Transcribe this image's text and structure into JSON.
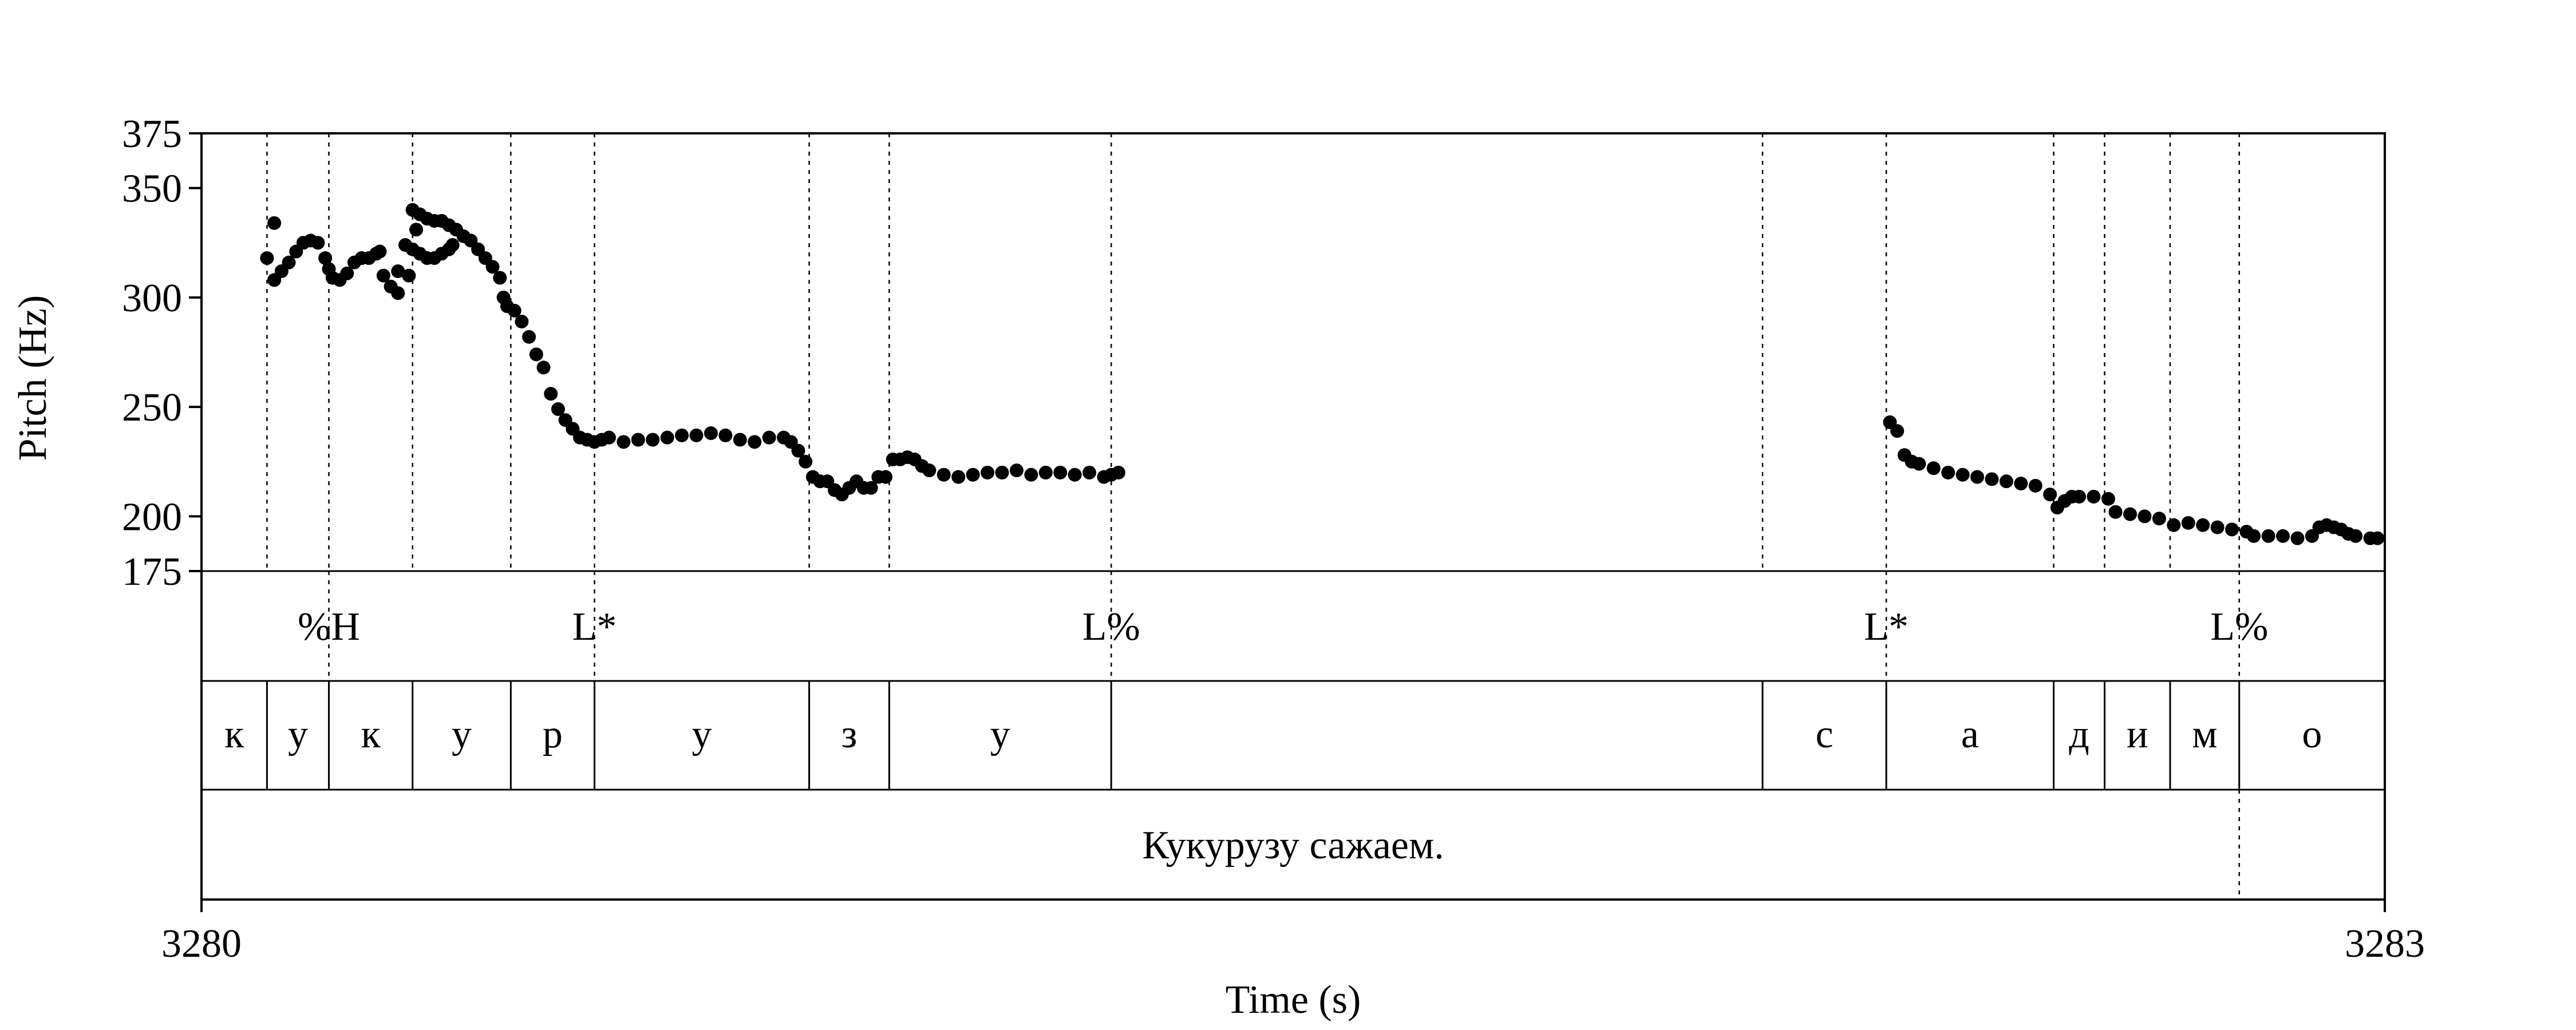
{
  "chart_data": {
    "type": "scatter",
    "xlabel": "Time (s)",
    "ylabel": "Pitch (Hz)",
    "xlim": [
      3280,
      3283
    ],
    "ylim": [
      175,
      375
    ],
    "x_tick_labels": [
      "3280",
      "3283"
    ],
    "y_ticks": [
      175,
      200,
      250,
      300,
      350,
      375
    ],
    "y_tick_labels": [
      "175",
      "200",
      "250",
      "300",
      "350",
      "375"
    ],
    "grid": false,
    "legend": "none",
    "marker_color": "#000000",
    "series": [
      {
        "points": [
          [
            3280.09,
            318
          ],
          [
            3280.1,
            334
          ],
          [
            3280.1,
            308
          ],
          [
            3280.11,
            312
          ],
          [
            3280.12,
            316
          ],
          [
            3280.13,
            321
          ],
          [
            3280.14,
            325
          ],
          [
            3280.15,
            326
          ],
          [
            3280.16,
            325
          ],
          [
            3280.17,
            318
          ],
          [
            3280.175,
            313
          ],
          [
            3280.18,
            309
          ],
          [
            3280.19,
            308
          ],
          [
            3280.2,
            311
          ],
          [
            3280.21,
            316
          ],
          [
            3280.22,
            318
          ],
          [
            3280.23,
            318
          ],
          [
            3280.24,
            320
          ],
          [
            3280.245,
            321
          ],
          [
            3280.25,
            310
          ],
          [
            3280.26,
            305
          ],
          [
            3280.27,
            312
          ],
          [
            3280.27,
            302
          ],
          [
            3280.28,
            324
          ],
          [
            3280.29,
            322
          ],
          [
            3280.3,
            320
          ],
          [
            3280.31,
            318
          ],
          [
            3280.32,
            318
          ],
          [
            3280.33,
            320
          ],
          [
            3280.34,
            322
          ],
          [
            3280.345,
            324
          ],
          [
            3280.285,
            310
          ],
          [
            3280.29,
            340
          ],
          [
            3280.295,
            331
          ],
          [
            3280.3,
            338
          ],
          [
            3280.31,
            336
          ],
          [
            3280.32,
            335
          ],
          [
            3280.33,
            335
          ],
          [
            3280.34,
            333
          ],
          [
            3280.35,
            331
          ],
          [
            3280.36,
            328
          ],
          [
            3280.37,
            326
          ],
          [
            3280.38,
            322
          ],
          [
            3280.39,
            318
          ],
          [
            3280.4,
            314
          ],
          [
            3280.41,
            309
          ],
          [
            3280.415,
            300
          ],
          [
            3280.42,
            296
          ],
          [
            3280.43,
            294
          ],
          [
            3280.44,
            289
          ],
          [
            3280.45,
            282
          ],
          [
            3280.46,
            274
          ],
          [
            3280.47,
            268
          ],
          [
            3280.48,
            256
          ],
          [
            3280.49,
            249
          ],
          [
            3280.5,
            244
          ],
          [
            3280.51,
            240
          ],
          [
            3280.52,
            236
          ],
          [
            3280.53,
            235
          ],
          [
            3280.54,
            234
          ],
          [
            3280.55,
            235
          ],
          [
            3280.56,
            236
          ],
          [
            3280.58,
            234
          ],
          [
            3280.6,
            235
          ],
          [
            3280.62,
            235
          ],
          [
            3280.64,
            236
          ],
          [
            3280.66,
            237
          ],
          [
            3280.68,
            237
          ],
          [
            3280.7,
            238
          ],
          [
            3280.72,
            237
          ],
          [
            3280.74,
            235
          ],
          [
            3280.76,
            234
          ],
          [
            3280.78,
            236
          ],
          [
            3280.8,
            236
          ],
          [
            3280.81,
            234
          ],
          [
            3280.82,
            230
          ],
          [
            3280.83,
            225
          ],
          [
            3280.84,
            218
          ],
          [
            3280.85,
            216
          ],
          [
            3280.86,
            216
          ],
          [
            3280.87,
            212
          ],
          [
            3280.88,
            210
          ],
          [
            3280.89,
            213
          ],
          [
            3280.9,
            216
          ],
          [
            3280.91,
            213
          ],
          [
            3280.92,
            213
          ],
          [
            3280.93,
            218
          ],
          [
            3280.94,
            218
          ],
          [
            3280.95,
            226
          ],
          [
            3280.96,
            226
          ],
          [
            3280.97,
            227
          ],
          [
            3280.98,
            226
          ],
          [
            3280.99,
            223
          ],
          [
            3281.0,
            221
          ],
          [
            3281.02,
            219
          ],
          [
            3281.04,
            218
          ],
          [
            3281.06,
            219
          ],
          [
            3281.08,
            220
          ],
          [
            3281.1,
            220
          ],
          [
            3281.12,
            221
          ],
          [
            3281.14,
            219
          ],
          [
            3281.16,
            220
          ],
          [
            3281.18,
            220
          ],
          [
            3281.2,
            219
          ],
          [
            3281.22,
            220
          ],
          [
            3281.24,
            218
          ],
          [
            3281.25,
            219
          ],
          [
            3281.26,
            220
          ],
          [
            3282.32,
            243
          ],
          [
            3282.33,
            239
          ],
          [
            3282.34,
            228
          ],
          [
            3282.35,
            225
          ],
          [
            3282.36,
            224
          ],
          [
            3282.38,
            222
          ],
          [
            3282.4,
            220
          ],
          [
            3282.42,
            219
          ],
          [
            3282.44,
            218
          ],
          [
            3282.46,
            217
          ],
          [
            3282.48,
            216
          ],
          [
            3282.5,
            215
          ],
          [
            3282.52,
            214
          ],
          [
            3282.54,
            210
          ],
          [
            3282.55,
            204
          ],
          [
            3282.56,
            207
          ],
          [
            3282.57,
            209
          ],
          [
            3282.58,
            209
          ],
          [
            3282.6,
            209
          ],
          [
            3282.62,
            208
          ],
          [
            3282.63,
            202
          ],
          [
            3282.65,
            201
          ],
          [
            3282.67,
            200
          ],
          [
            3282.69,
            199
          ],
          [
            3282.71,
            196
          ],
          [
            3282.73,
            197
          ],
          [
            3282.75,
            196
          ],
          [
            3282.77,
            195
          ],
          [
            3282.79,
            194
          ],
          [
            3282.81,
            193
          ],
          [
            3282.82,
            191
          ],
          [
            3282.84,
            191
          ],
          [
            3282.86,
            191
          ],
          [
            3282.88,
            190
          ],
          [
            3282.9,
            191
          ],
          [
            3282.91,
            195
          ],
          [
            3282.92,
            196
          ],
          [
            3282.93,
            195
          ],
          [
            3282.94,
            194
          ],
          [
            3282.95,
            192
          ],
          [
            3282.96,
            191
          ],
          [
            3282.98,
            190
          ],
          [
            3282.99,
            190
          ]
        ]
      }
    ],
    "boundaries": [
      3280.09,
      3280.175,
      3280.29,
      3280.425,
      3280.54,
      3280.835,
      3280.945,
      3281.25,
      3282.145,
      3282.315,
      3282.545,
      3282.615,
      3282.705,
      3282.8
    ],
    "tone_tier": [
      {
        "label": "%H",
        "time": 3280.175
      },
      {
        "label": "L*",
        "time": 3280.54
      },
      {
        "label": "L%",
        "time": 3281.25
      },
      {
        "label": "L*",
        "time": 3282.315
      },
      {
        "label": "L%",
        "time": 3282.8
      }
    ],
    "segment_tier": [
      {
        "label": "к",
        "start": 3280.0,
        "end": 3280.09
      },
      {
        "label": "у",
        "start": 3280.09,
        "end": 3280.175
      },
      {
        "label": "к",
        "start": 3280.175,
        "end": 3280.29
      },
      {
        "label": "у",
        "start": 3280.29,
        "end": 3280.425
      },
      {
        "label": "р",
        "start": 3280.425,
        "end": 3280.54
      },
      {
        "label": "у",
        "start": 3280.54,
        "end": 3280.835
      },
      {
        "label": "з",
        "start": 3280.835,
        "end": 3280.945
      },
      {
        "label": "у",
        "start": 3280.945,
        "end": 3281.25
      },
      {
        "label": "",
        "start": 3281.25,
        "end": 3282.145
      },
      {
        "label": "с",
        "start": 3282.145,
        "end": 3282.315
      },
      {
        "label": "а",
        "start": 3282.315,
        "end": 3282.545
      },
      {
        "label": "д",
        "start": 3282.545,
        "end": 3282.615
      },
      {
        "label": "и",
        "start": 3282.615,
        "end": 3282.705
      },
      {
        "label": "м",
        "start": 3282.705,
        "end": 3282.8
      },
      {
        "label": "о",
        "start": 3282.8,
        "end": 3283.0
      }
    ],
    "utterance_tier": {
      "label": "Кукурузу сажаем.",
      "start": 3280.0,
      "end": 3283.0
    }
  }
}
